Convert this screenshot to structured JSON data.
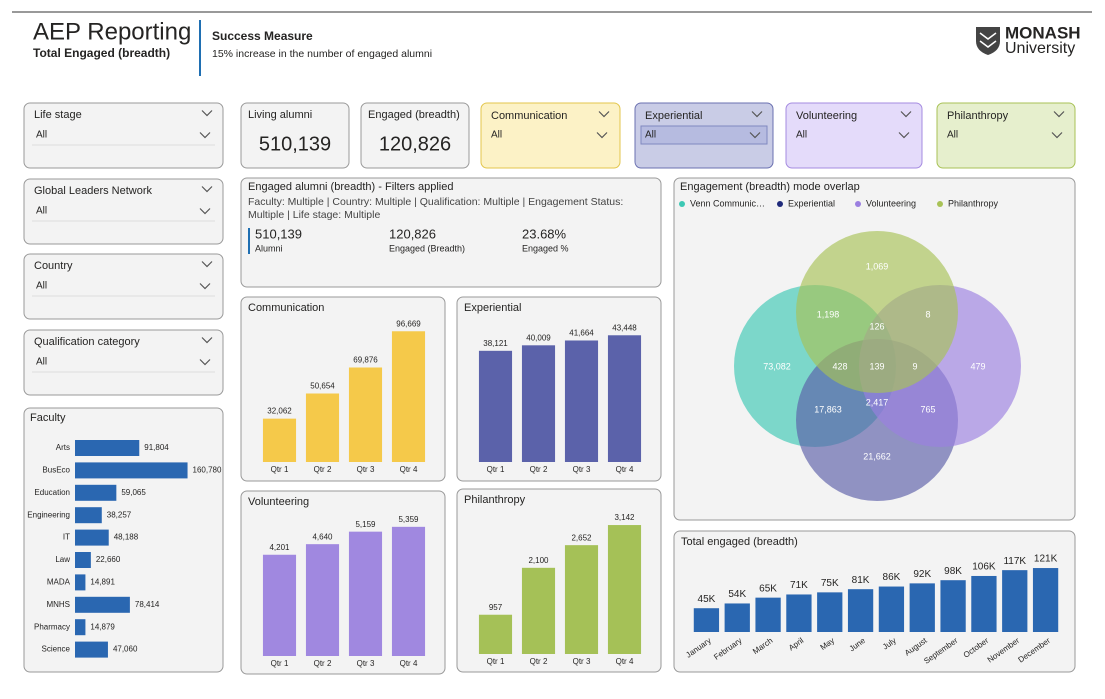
{
  "header": {
    "title": "AEP Reporting",
    "subtitle": "Total Engaged (breadth)",
    "measure_title": "Success Measure",
    "measure_text": "15% increase in the number of engaged alumni",
    "logo": {
      "name": "MONASH",
      "sub": "University"
    }
  },
  "filters": [
    {
      "label": "Life stage",
      "value": "All"
    },
    {
      "label": "Global Leaders Network",
      "value": "All"
    },
    {
      "label": "Country",
      "value": "All"
    },
    {
      "label": "Qualification category",
      "value": "All"
    }
  ],
  "mode_filters": [
    {
      "label": "Communication",
      "value": "All",
      "color": "#fcf2c6",
      "border": "#e3c64c"
    },
    {
      "label": "Experiential",
      "value": "All",
      "color": "#c9cce6",
      "border": "#6a70b0"
    },
    {
      "label": "Volunteering",
      "value": "All",
      "color": "#e4dbfa",
      "border": "#a58be0"
    },
    {
      "label": "Philanthropy",
      "value": "All",
      "color": "#e6efcd",
      "border": "#a8c256"
    }
  ],
  "cards": [
    {
      "label": "Living alumni",
      "value": "510,139"
    },
    {
      "label": "Engaged (breadth)",
      "value": "120,826"
    }
  ],
  "filters_applied": {
    "title": "Engaged alumni (breadth) - Filters applied",
    "text": "Faculty: Multiple | Country: Multiple | Qualification: Multiple | Engagement Status: Multiple | Life stage: Multiple",
    "stats": [
      {
        "value": "510,139",
        "label": "Alumni"
      },
      {
        "value": "120,826",
        "label": "Engaged (Breadth)"
      },
      {
        "value": "23.68%",
        "label": "Engaged %"
      }
    ]
  },
  "chart_data": [
    {
      "type": "bar",
      "orientation": "horizontal",
      "title": "Faculty",
      "categories": [
        "Arts",
        "BusEco",
        "Education",
        "Engineering",
        "IT",
        "Law",
        "MADA",
        "MNHS",
        "Pharmacy",
        "Science"
      ],
      "values": [
        91804,
        160780,
        59065,
        38257,
        48188,
        22660,
        14891,
        78414,
        14879,
        47060
      ],
      "value_labels": [
        "91,804",
        "160,780",
        "59,065",
        "38,257",
        "48,188",
        "22,660",
        "14,891",
        "78,414",
        "14,879",
        "47,060"
      ],
      "color": "#2a67b1",
      "xlim": [
        0,
        200000
      ]
    },
    {
      "type": "bar",
      "title": "Communication",
      "categories": [
        "Qtr 1",
        "Qtr 2",
        "Qtr 3",
        "Qtr 4"
      ],
      "values": [
        32062,
        50654,
        69876,
        96669
      ],
      "value_labels": [
        "32,062",
        "50,654",
        "69,876",
        "96,669"
      ],
      "color": "#f5c94a",
      "ylim": [
        0,
        105000
      ]
    },
    {
      "type": "bar",
      "title": "Experiential",
      "categories": [
        "Qtr 1",
        "Qtr 2",
        "Qtr 3",
        "Qtr 4"
      ],
      "values": [
        38121,
        40009,
        41664,
        43448
      ],
      "value_labels": [
        "38,121",
        "40,009",
        "41,664",
        "43,448"
      ],
      "color": "#5b62aa",
      "ylim": [
        0,
        48000
      ]
    },
    {
      "type": "bar",
      "title": "Volunteering",
      "categories": [
        "Qtr 1",
        "Qtr 2",
        "Qtr 3",
        "Qtr 4"
      ],
      "values": [
        4201,
        4640,
        5159,
        5359
      ],
      "value_labels": [
        "4,201",
        "4,640",
        "5,159",
        "5,359"
      ],
      "color": "#a088e0",
      "ylim": [
        0,
        5850
      ]
    },
    {
      "type": "bar",
      "title": "Philanthropy",
      "categories": [
        "Qtr 1",
        "Qtr 2",
        "Qtr 3",
        "Qtr 4"
      ],
      "values": [
        957,
        2100,
        2652,
        3142
      ],
      "value_labels": [
        "957",
        "2,100",
        "2,652",
        "3,142"
      ],
      "color": "#a5c157",
      "ylim": [
        0,
        3460
      ]
    },
    {
      "type": "venn",
      "title": "Engagement (breadth) mode overlap",
      "sets": [
        {
          "name": "Venn Communic…",
          "color": "#3cc8b4"
        },
        {
          "name": "Experiential",
          "color": "#5a5da8"
        },
        {
          "name": "Volunteering",
          "color": "#9b7fe0"
        },
        {
          "name": "Philanthropy",
          "color": "#a8c256"
        }
      ],
      "values": [
        1069,
        1198,
        126,
        8,
        73082,
        428,
        139,
        9,
        479,
        17863,
        2417,
        765,
        21662
      ],
      "value_labels": [
        "1,069",
        "1,198",
        "126",
        "8",
        "73,082",
        "428",
        "139",
        "9",
        "479",
        "17,863",
        "2,417",
        "765",
        "21,662"
      ]
    },
    {
      "type": "bar",
      "title": "Total engaged (breadth)",
      "categories": [
        "January",
        "February",
        "March",
        "April",
        "May",
        "June",
        "July",
        "August",
        "September",
        "October",
        "November",
        "December"
      ],
      "values": [
        45000,
        54000,
        65000,
        71000,
        75000,
        81000,
        86000,
        92000,
        98000,
        106000,
        117000,
        121000
      ],
      "value_labels": [
        "45K",
        "54K",
        "65K",
        "71K",
        "75K",
        "81K",
        "86K",
        "92K",
        "98K",
        "106K",
        "117K",
        "121K"
      ],
      "color": "#2a67b1",
      "ylim": [
        0,
        140000
      ]
    }
  ]
}
